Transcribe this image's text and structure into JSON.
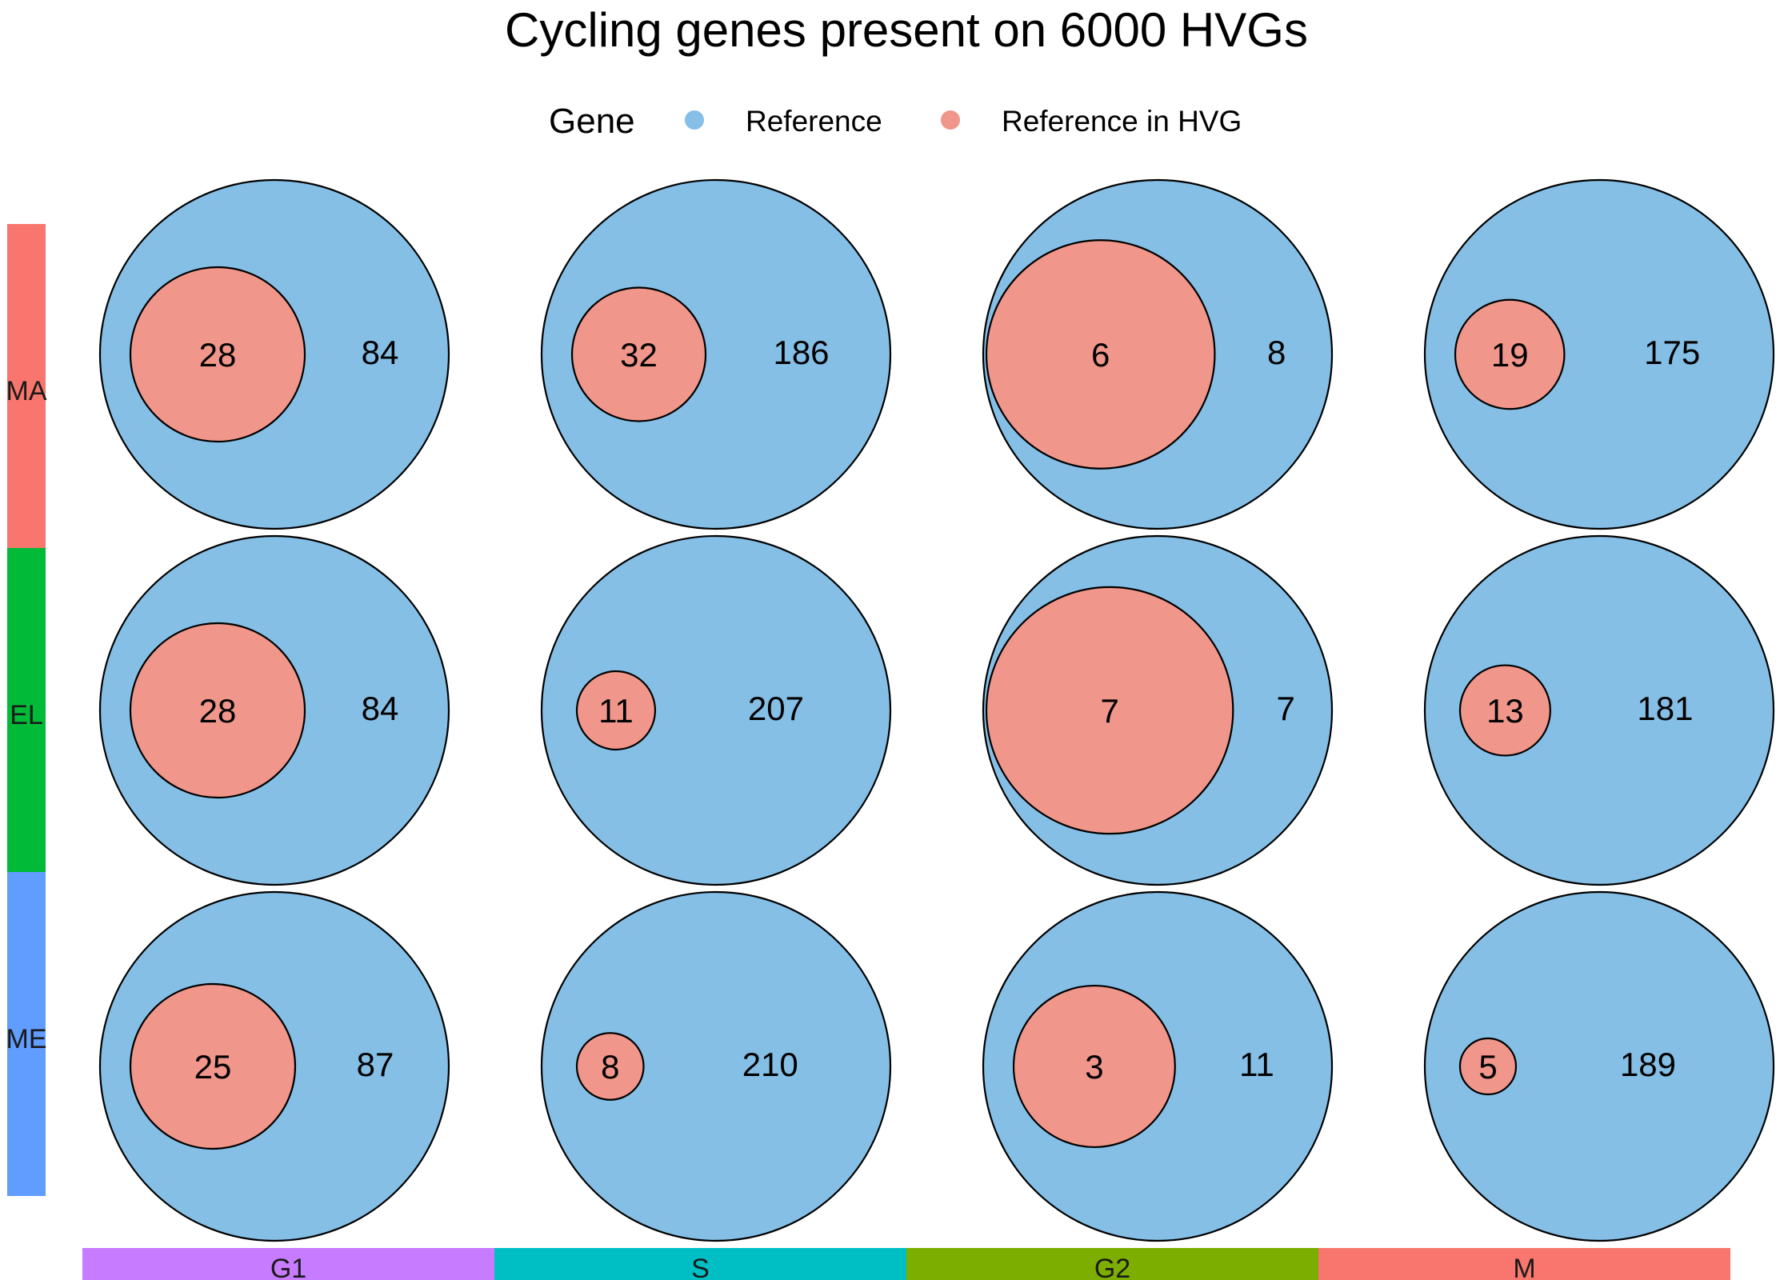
{
  "chart_data": {
    "type": "euler",
    "title": "Cycling genes present on 6000 HVGs",
    "legend": {
      "title": "Gene",
      "position": "top",
      "items": [
        {
          "label": "Reference",
          "color": "#85BFE6"
        },
        {
          "label": "Reference in HVG",
          "color": "#F0968A"
        }
      ]
    },
    "rows": [
      {
        "label": "MA",
        "color": "#F8766D"
      },
      {
        "label": "EL",
        "color": "#00BA38"
      },
      {
        "label": "ME",
        "color": "#619CFF"
      }
    ],
    "columns": [
      {
        "label": "G1",
        "color": "#C77CFF"
      },
      {
        "label": "S",
        "color": "#00BFC4"
      },
      {
        "label": "G2",
        "color": "#7CAE00"
      },
      {
        "label": "M",
        "color": "#F8766D"
      }
    ],
    "cells": [
      {
        "row": "MA",
        "col": "G1",
        "reference_in_hvg": 28,
        "reference_only": 84
      },
      {
        "row": "MA",
        "col": "S",
        "reference_in_hvg": 32,
        "reference_only": 186
      },
      {
        "row": "MA",
        "col": "G2",
        "reference_in_hvg": 6,
        "reference_only": 8
      },
      {
        "row": "MA",
        "col": "M",
        "reference_in_hvg": 19,
        "reference_only": 175
      },
      {
        "row": "EL",
        "col": "G1",
        "reference_in_hvg": 28,
        "reference_only": 84
      },
      {
        "row": "EL",
        "col": "S",
        "reference_in_hvg": 11,
        "reference_only": 207
      },
      {
        "row": "EL",
        "col": "G2",
        "reference_in_hvg": 7,
        "reference_only": 7
      },
      {
        "row": "EL",
        "col": "M",
        "reference_in_hvg": 13,
        "reference_only": 181
      },
      {
        "row": "ME",
        "col": "G1",
        "reference_in_hvg": 25,
        "reference_only": 87
      },
      {
        "row": "ME",
        "col": "S",
        "reference_in_hvg": 8,
        "reference_only": 210
      },
      {
        "row": "ME",
        "col": "G2",
        "reference_in_hvg": 3,
        "reference_only": 11
      },
      {
        "row": "ME",
        "col": "M",
        "reference_in_hvg": 5,
        "reference_only": 189
      }
    ]
  }
}
